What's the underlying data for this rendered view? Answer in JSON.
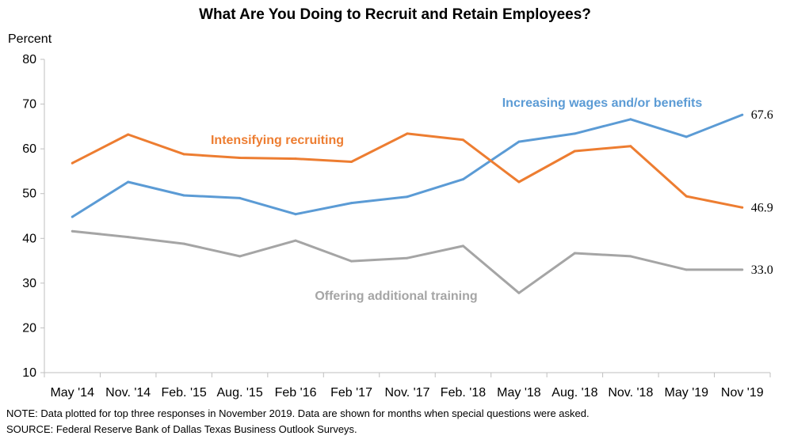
{
  "chart_data": {
    "type": "line",
    "title": "What Are You Doing to Recruit and Retain Employees?",
    "ylabel": "Percent",
    "ylim": [
      10,
      80
    ],
    "yticks": [
      10,
      20,
      30,
      40,
      50,
      60,
      70,
      80
    ],
    "grid": false,
    "categories": [
      "May '14",
      "Nov. '14",
      "Feb. '15",
      "Aug. '15",
      "Feb '16",
      "Feb '17",
      "Nov. '17",
      "Feb. '18",
      "May '18",
      "Aug. '18",
      "Nov. '18",
      "May '19",
      "Nov '19"
    ],
    "series": [
      {
        "name": "Increasing wages and/or benefits",
        "color": "#5b9bd5",
        "values": [
          44.8,
          52.6,
          49.6,
          49.0,
          45.4,
          47.9,
          49.3,
          53.2,
          61.6,
          63.4,
          66.6,
          62.7,
          67.6
        ],
        "end_label": "67.6"
      },
      {
        "name": "Intensifying recruiting",
        "color": "#ed7d31",
        "values": [
          56.8,
          63.2,
          58.8,
          58.0,
          57.8,
          57.1,
          63.4,
          62.0,
          52.6,
          59.5,
          60.6,
          49.4,
          46.9
        ],
        "end_label": "46.9"
      },
      {
        "name": "Offering additional training",
        "color": "#a5a5a5",
        "values": [
          41.6,
          40.3,
          38.8,
          36.0,
          39.5,
          34.9,
          35.6,
          38.3,
          27.8,
          36.7,
          36.0,
          33.0,
          33.0
        ],
        "end_label": "33.0"
      }
    ]
  },
  "notes": {
    "note": "NOTE: Data plotted for top three responses in November 2019. Data are shown for months when special questions were asked.",
    "source": "SOURCE: Federal Reserve Bank of Dallas Texas Business Outlook Surveys."
  }
}
